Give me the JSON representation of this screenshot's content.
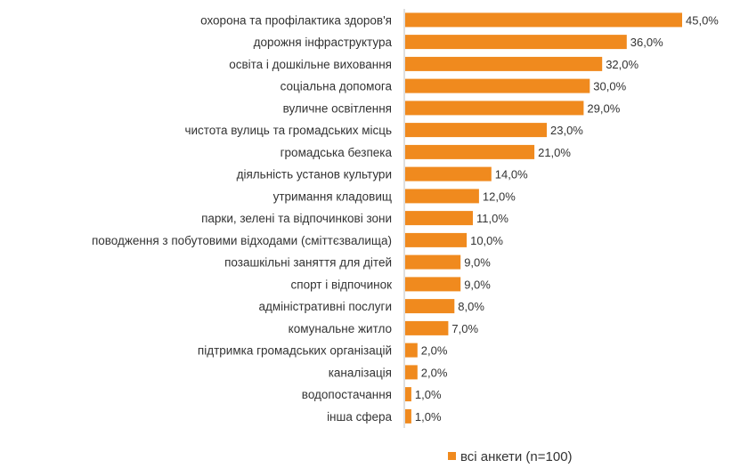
{
  "chart_data": {
    "type": "bar",
    "orientation": "horizontal",
    "categories": [
      "охорона та профілактика здоров'я",
      "дорожня інфраструктура",
      "освіта і дошкільне виховання",
      "соціальна допомога",
      "вуличне освітлення",
      "чистота вулиць та громадських місць",
      "громадська безпека",
      "діяльність установ культури",
      "утримання кладовищ",
      "парки, зелені та відпочинкові зони",
      "поводження з побутовими відходами (сміттєзвалища)",
      "позашкільні заняття для дітей",
      "спорт і відпочинок",
      "адміністративні послуги",
      "комунальне житло",
      "підтримка громадських організацій",
      "каналізація",
      "водопостачання",
      "інша сфера"
    ],
    "series": [
      {
        "name": "всі анкети (n=100)",
        "values": [
          45,
          36,
          32,
          30,
          29,
          23,
          21,
          14,
          12,
          11,
          10,
          9,
          9,
          8,
          7,
          2,
          2,
          1,
          1
        ],
        "labels": [
          "45,0%",
          "36,0%",
          "32,0%",
          "30,0%",
          "29,0%",
          "23,0%",
          "21,0%",
          "14,0%",
          "12,0%",
          "11,0%",
          "10,0%",
          "9,0%",
          "9,0%",
          "8,0%",
          "7,0%",
          "2,0%",
          "2,0%",
          "1,0%",
          "1,0%"
        ]
      }
    ],
    "xlim": [
      0,
      45
    ],
    "unit": "%",
    "grid": false,
    "legend_position": "bottom-right",
    "colors": {
      "bar": "#F08A1E"
    }
  }
}
